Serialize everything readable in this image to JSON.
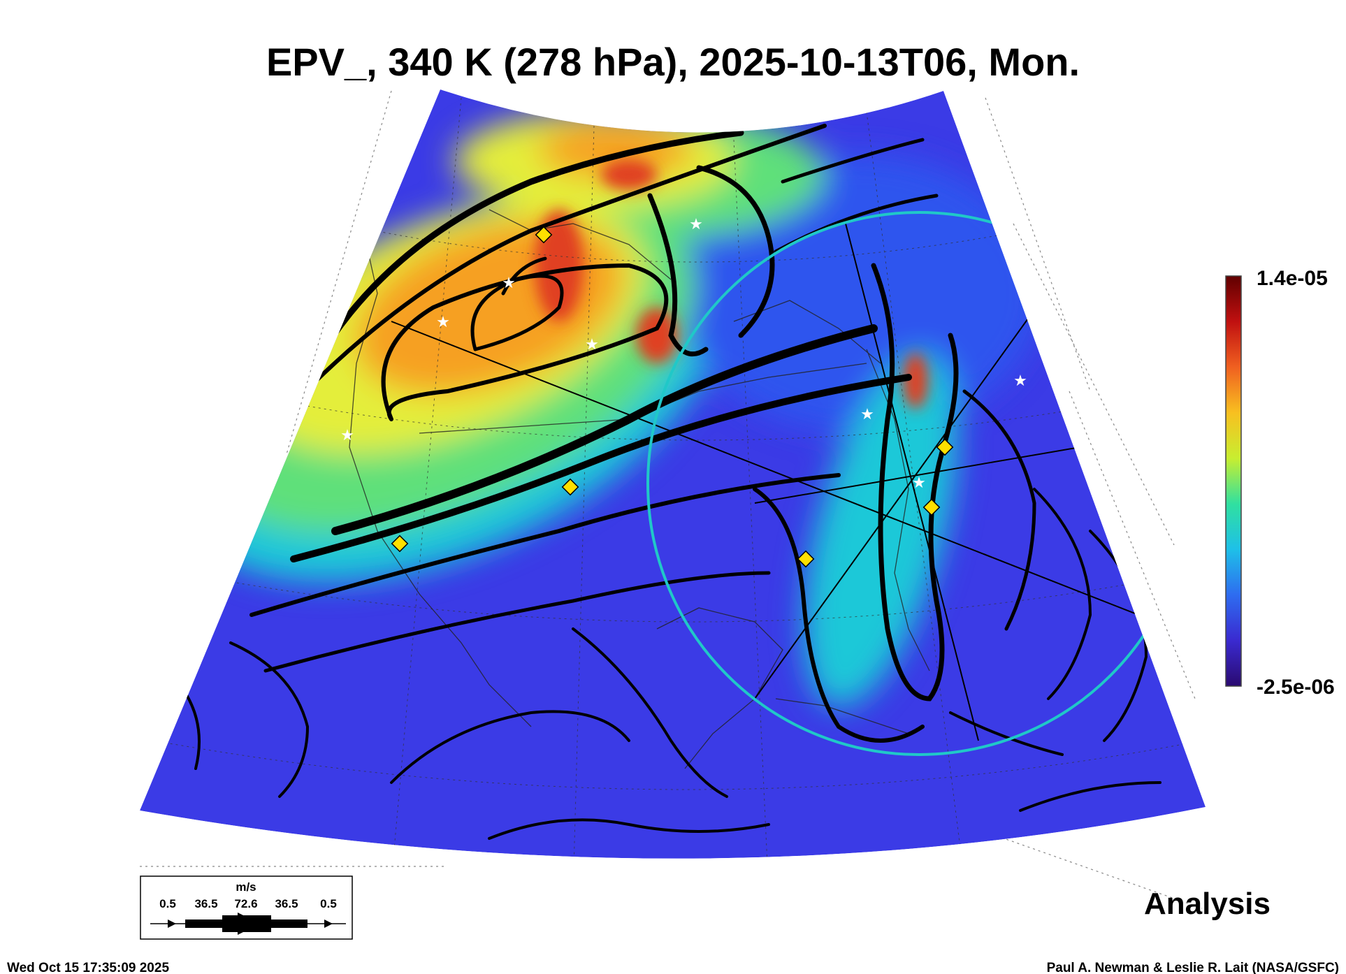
{
  "title": "EPV_, 340 K (278 hPa), 2025-10-13T06, Mon.",
  "colorbar": {
    "max_label": "1.4e-05",
    "min_label": "-2.5e-06",
    "colors": [
      "#2a0a70",
      "#3a2ad0",
      "#2e6cf0",
      "#1ec0e8",
      "#30e0a0",
      "#c8ee30",
      "#f8c020",
      "#f06020",
      "#c01010",
      "#600000"
    ]
  },
  "legend": {
    "unit": "m/s",
    "ticks": [
      "0.5",
      "36.5",
      "72.6",
      "36.5",
      "0.5"
    ]
  },
  "analysis_label": "Analysis",
  "footer": {
    "timestamp": "Wed Oct 15 17:35:09 2025",
    "credit": "Paul A. Newman & Leslie R. Lait (NASA/GSFC)"
  },
  "map": {
    "field_colors": {
      "low": "#3b3be6",
      "low2": "#2f55ee",
      "mid": "#1fc8d8",
      "green": "#5fe07a",
      "yellow": "#e4ee3a",
      "orange": "#f6a020",
      "red": "#e04020"
    },
    "ring_color": "#20c8c8",
    "marker_color": "#ffe000"
  }
}
